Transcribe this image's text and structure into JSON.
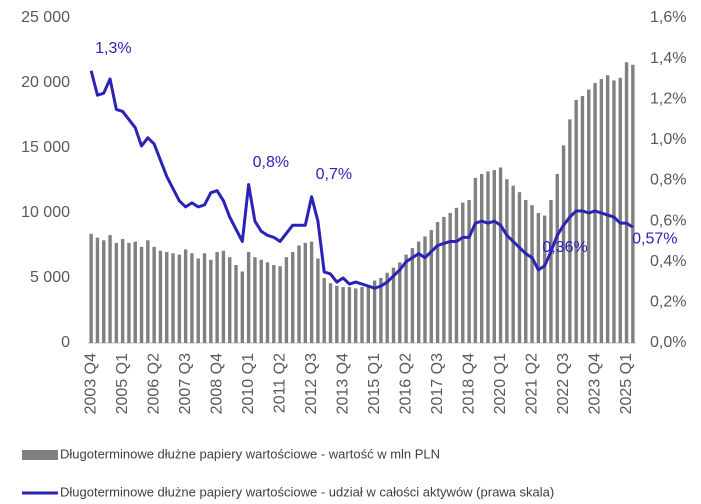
{
  "chart_data": {
    "type": "bar+line",
    "categories": [
      "2003 Q4",
      null,
      null,
      null,
      null,
      "2005 Q1",
      null,
      null,
      null,
      null,
      "2006 Q2",
      null,
      null,
      null,
      null,
      "2007 Q3",
      null,
      null,
      null,
      null,
      "2008 Q4",
      null,
      null,
      null,
      null,
      "2010 Q1",
      null,
      null,
      null,
      null,
      "2011 Q2",
      null,
      null,
      null,
      null,
      "2012 Q3",
      null,
      null,
      null,
      null,
      "2013 Q4",
      null,
      null,
      null,
      null,
      "2015 Q1",
      null,
      null,
      null,
      null,
      "2016 Q2",
      null,
      null,
      null,
      null,
      "2017 Q3",
      null,
      null,
      null,
      null,
      "2018 Q4",
      null,
      null,
      null,
      null,
      "2020 Q1",
      null,
      null,
      null,
      null,
      "2021 Q2",
      null,
      null,
      null,
      null,
      "2022 Q3",
      null,
      null,
      null,
      null,
      "2023 Q4",
      null,
      null,
      null,
      null,
      "2025 Q1",
      null
    ],
    "series": [
      {
        "name": "Długoterminowe dłużne papiery wartościowe - wartość w mln PLN",
        "type": "bar",
        "color": "#808080",
        "values": [
          8400,
          8100,
          7900,
          8300,
          7700,
          8000,
          7700,
          7800,
          7400,
          7900,
          7400,
          7100,
          7000,
          6900,
          6800,
          7200,
          6900,
          6500,
          6900,
          6400,
          7000,
          7100,
          6600,
          6000,
          5500,
          7000,
          6600,
          6400,
          6200,
          6000,
          5900,
          6600,
          7000,
          7500,
          7700,
          7800,
          6500,
          5000,
          4600,
          4400,
          4300,
          4300,
          4200,
          4300,
          4400,
          4800,
          5000,
          5400,
          5800,
          6200,
          6800,
          7300,
          7800,
          8200,
          8700,
          9300,
          9700,
          10000,
          10400,
          10800,
          11000,
          12700,
          13000,
          13200,
          13300,
          13500,
          12600,
          12100,
          11600,
          11000,
          10600,
          10000,
          9800,
          11000,
          13000,
          15200,
          17200,
          18700,
          19000,
          19500,
          20000,
          20300,
          20600,
          20200,
          20400,
          21600,
          21400
        ]
      },
      {
        "name": "Długoterminowe dłużne papiery wartościowe - udział w całości aktywów (prawa skala)",
        "type": "line",
        "axis": "y2",
        "color": "#2b23b5",
        "values": [
          1.34,
          1.22,
          1.23,
          1.3,
          1.15,
          1.14,
          1.1,
          1.06,
          0.97,
          1.01,
          0.98,
          0.9,
          0.82,
          0.76,
          0.7,
          0.67,
          0.69,
          0.67,
          0.68,
          0.74,
          0.75,
          0.7,
          0.62,
          0.56,
          0.5,
          0.78,
          0.6,
          0.55,
          0.53,
          0.52,
          0.5,
          0.54,
          0.58,
          0.58,
          0.58,
          0.72,
          0.6,
          0.35,
          0.34,
          0.3,
          0.32,
          0.29,
          0.3,
          0.29,
          0.28,
          0.27,
          0.28,
          0.3,
          0.33,
          0.36,
          0.4,
          0.42,
          0.44,
          0.42,
          0.45,
          0.48,
          0.49,
          0.5,
          0.5,
          0.52,
          0.52,
          0.59,
          0.6,
          0.59,
          0.6,
          0.58,
          0.53,
          0.5,
          0.47,
          0.44,
          0.42,
          0.36,
          0.38,
          0.45,
          0.53,
          0.58,
          0.62,
          0.65,
          0.65,
          0.64,
          0.65,
          0.64,
          0.63,
          0.62,
          0.59,
          0.59,
          0.57
        ],
        "value_labels": [
          "1,3%",
          null,
          null,
          null,
          null,
          null,
          null,
          null,
          null,
          null,
          null,
          null,
          null,
          null,
          null,
          null,
          null,
          null,
          null,
          null,
          null,
          null,
          null,
          null,
          null,
          "0,8%",
          null,
          null,
          null,
          null,
          null,
          null,
          null,
          null,
          null,
          "0,7%",
          null,
          null,
          null,
          null,
          null,
          null,
          null,
          null,
          null,
          null,
          null,
          null,
          null,
          null,
          null,
          null,
          null,
          null,
          null,
          null,
          null,
          null,
          null,
          null,
          null,
          null,
          null,
          null,
          null,
          null,
          null,
          null,
          null,
          null,
          null,
          "0,36%",
          null,
          null,
          null,
          null,
          null,
          null,
          null,
          null,
          null,
          null,
          null,
          null,
          null,
          null,
          "0,57%"
        ]
      }
    ],
    "ylim": [
      0,
      25000
    ],
    "yticks": [
      0,
      {
        "value": 5000,
        "label": "5 000"
      },
      {
        "value": 10000,
        "label": "10 000"
      },
      {
        "value": 15000,
        "label": "15 000"
      },
      {
        "value": 20000,
        "label": "20 000"
      },
      {
        "value": 25000,
        "label": "25 000"
      }
    ],
    "y2lim": [
      0,
      1.6
    ],
    "y2ticks": [
      {
        "value": 0,
        "label": "0,0%"
      },
      {
        "value": 0.2,
        "label": "0,2%"
      },
      {
        "value": 0.4,
        "label": "0,4%"
      },
      {
        "value": 0.6,
        "label": "0,6%"
      },
      {
        "value": 0.8,
        "label": "0,8%"
      },
      {
        "value": 1.0,
        "label": "1,0%"
      },
      {
        "value": 1.2,
        "label": "1,2%"
      },
      {
        "value": 1.4,
        "label": "1,4%"
      },
      {
        "value": 1.6,
        "label": "1,6%"
      }
    ],
    "legend": "bottom"
  }
}
